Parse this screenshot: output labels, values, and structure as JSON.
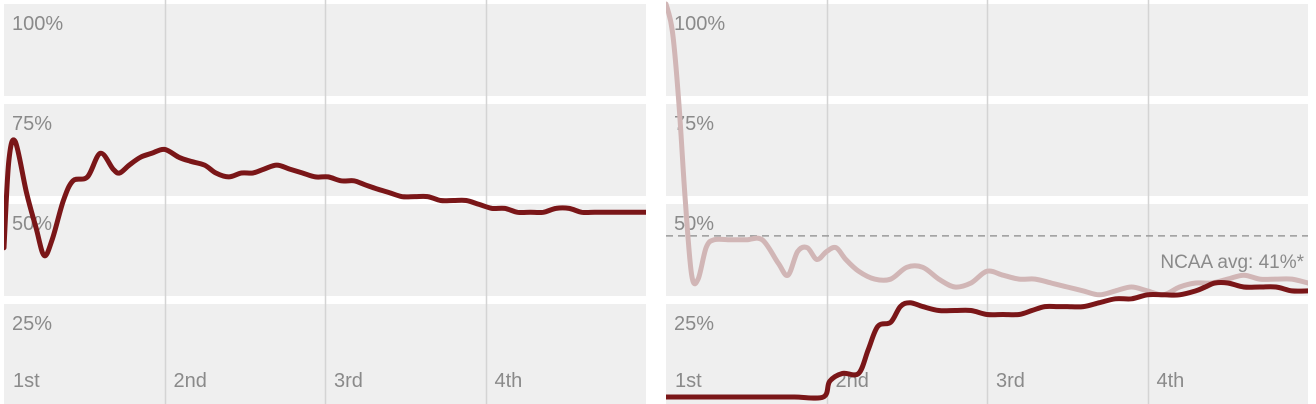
{
  "chart_data": [
    {
      "type": "line",
      "title": "",
      "xlabel": "",
      "ylabel": "",
      "x_range": [
        0,
        40
      ],
      "ylim": [
        0,
        100
      ],
      "y_ticks": [
        "100%",
        "75%",
        "50%",
        "25%"
      ],
      "x_ticks": [
        {
          "label": "1st",
          "x": 0
        },
        {
          "label": "2nd",
          "x": 10
        },
        {
          "label": "3rd",
          "x": 20
        },
        {
          "label": "4th",
          "x": 30
        }
      ],
      "grid": true,
      "legend": "none",
      "colors": {
        "background": "#efefef",
        "grid": "#d4d4d4",
        "line": "#7a1618"
      },
      "series": [
        {
          "color": "#7a1618",
          "points": [
            [
              0,
              38
            ],
            [
              0.3,
              60
            ],
            [
              0.7,
              65
            ],
            [
              1.4,
              52
            ],
            [
              2,
              43
            ],
            [
              2.5,
              36
            ],
            [
              3,
              40
            ],
            [
              3.7,
              50
            ],
            [
              4.3,
              55
            ],
            [
              5.2,
              56
            ],
            [
              6,
              62
            ],
            [
              6.8,
              58
            ],
            [
              7.2,
              57
            ],
            [
              7.8,
              59
            ],
            [
              8.5,
              61
            ],
            [
              9.2,
              62
            ],
            [
              10,
              63
            ],
            [
              10.9,
              61
            ],
            [
              11.6,
              60
            ],
            [
              12.5,
              59
            ],
            [
              13.2,
              57
            ],
            [
              14,
              56
            ],
            [
              14.8,
              57
            ],
            [
              15.5,
              57
            ],
            [
              16.2,
              58
            ],
            [
              17,
              59
            ],
            [
              17.8,
              58
            ],
            [
              18.6,
              57
            ],
            [
              19.4,
              56
            ],
            [
              20.2,
              56
            ],
            [
              21,
              55
            ],
            [
              21.8,
              55
            ],
            [
              22.5,
              54
            ],
            [
              23.2,
              53
            ],
            [
              24,
              52
            ],
            [
              24.8,
              51
            ],
            [
              25.6,
              51
            ],
            [
              26.4,
              51
            ],
            [
              27.2,
              50
            ],
            [
              28,
              50
            ],
            [
              28.8,
              50
            ],
            [
              29.6,
              49
            ],
            [
              30.4,
              48
            ],
            [
              31.2,
              48
            ],
            [
              32,
              47
            ],
            [
              32.8,
              47
            ],
            [
              33.6,
              47
            ],
            [
              34.4,
              48
            ],
            [
              35.2,
              48
            ],
            [
              36,
              47
            ],
            [
              36.8,
              47
            ],
            [
              37.6,
              47
            ],
            [
              38.4,
              47
            ],
            [
              39.2,
              47
            ],
            [
              40,
              47
            ]
          ]
        }
      ]
    },
    {
      "type": "line",
      "title": "",
      "xlabel": "",
      "ylabel": "",
      "x_range": [
        0,
        40
      ],
      "ylim": [
        0,
        100
      ],
      "y_ticks": [
        "100%",
        "75%",
        "50%",
        "25%"
      ],
      "x_ticks": [
        {
          "label": "1st",
          "x": 0
        },
        {
          "label": "2nd",
          "x": 10
        },
        {
          "label": "3rd",
          "x": 20
        },
        {
          "label": "4th",
          "x": 30
        }
      ],
      "grid": true,
      "legend": "none",
      "reference_line": {
        "value": 41,
        "label": "NCAA avg: 41%*",
        "style": "dashed"
      },
      "colors": {
        "background": "#efefef",
        "grid": "#d4d4d4",
        "line": "#7a1618",
        "line_light": "#d1b6b6",
        "reference": "#9a9a9a"
      },
      "series": [
        {
          "color": "#d1b6b6",
          "points": [
            [
              0,
              100
            ],
            [
              0.4,
              93
            ],
            [
              0.8,
              75
            ],
            [
              1.2,
              50
            ],
            [
              1.6,
              31
            ],
            [
              2,
              30
            ],
            [
              2.5,
              38
            ],
            [
              3,
              40
            ],
            [
              4,
              40
            ],
            [
              5,
              40
            ],
            [
              6,
              40
            ],
            [
              7,
              34
            ],
            [
              7.6,
              31
            ],
            [
              8.2,
              37
            ],
            [
              8.8,
              38
            ],
            [
              9.4,
              35
            ],
            [
              10,
              37
            ],
            [
              10.6,
              38
            ],
            [
              11.2,
              35
            ],
            [
              12,
              32
            ],
            [
              13,
              30
            ],
            [
              14,
              30
            ],
            [
              15,
              33
            ],
            [
              16,
              33
            ],
            [
              17,
              30
            ],
            [
              18,
              28
            ],
            [
              19,
              29
            ],
            [
              20,
              32
            ],
            [
              21,
              31
            ],
            [
              22,
              30
            ],
            [
              23,
              30
            ],
            [
              24,
              29
            ],
            [
              25,
              28
            ],
            [
              26,
              27
            ],
            [
              27,
              26
            ],
            [
              28,
              27
            ],
            [
              29,
              28
            ],
            [
              30,
              27
            ],
            [
              31,
              26
            ],
            [
              32,
              28
            ],
            [
              33,
              29
            ],
            [
              34,
              29
            ],
            [
              35,
              30
            ],
            [
              36,
              31
            ],
            [
              37,
              30
            ],
            [
              38,
              30
            ],
            [
              39,
              30
            ],
            [
              40,
              29
            ]
          ]
        },
        {
          "color": "#7a1618",
          "points": [
            [
              0,
              0
            ],
            [
              2,
              0
            ],
            [
              4,
              0
            ],
            [
              6,
              0
            ],
            [
              8,
              0
            ],
            [
              9.8,
              0
            ],
            [
              10.2,
              4
            ],
            [
              11,
              6
            ],
            [
              12,
              6
            ],
            [
              12.6,
              12
            ],
            [
              13.2,
              18
            ],
            [
              14,
              19
            ],
            [
              14.6,
              23
            ],
            [
              15.2,
              24
            ],
            [
              16,
              23
            ],
            [
              17,
              22
            ],
            [
              18,
              22
            ],
            [
              19,
              22
            ],
            [
              20,
              21
            ],
            [
              21,
              21
            ],
            [
              22,
              21
            ],
            [
              22.8,
              22
            ],
            [
              23.6,
              23
            ],
            [
              24.4,
              23
            ],
            [
              25,
              23
            ],
            [
              26,
              23
            ],
            [
              27,
              24
            ],
            [
              28,
              25
            ],
            [
              29,
              25
            ],
            [
              30,
              26
            ],
            [
              31,
              26
            ],
            [
              32,
              26
            ],
            [
              33,
              27
            ],
            [
              33.6,
              28
            ],
            [
              34.2,
              29
            ],
            [
              35,
              29
            ],
            [
              36,
              28
            ],
            [
              37,
              28
            ],
            [
              38,
              28
            ],
            [
              39,
              27
            ],
            [
              40,
              27
            ]
          ]
        }
      ]
    }
  ]
}
